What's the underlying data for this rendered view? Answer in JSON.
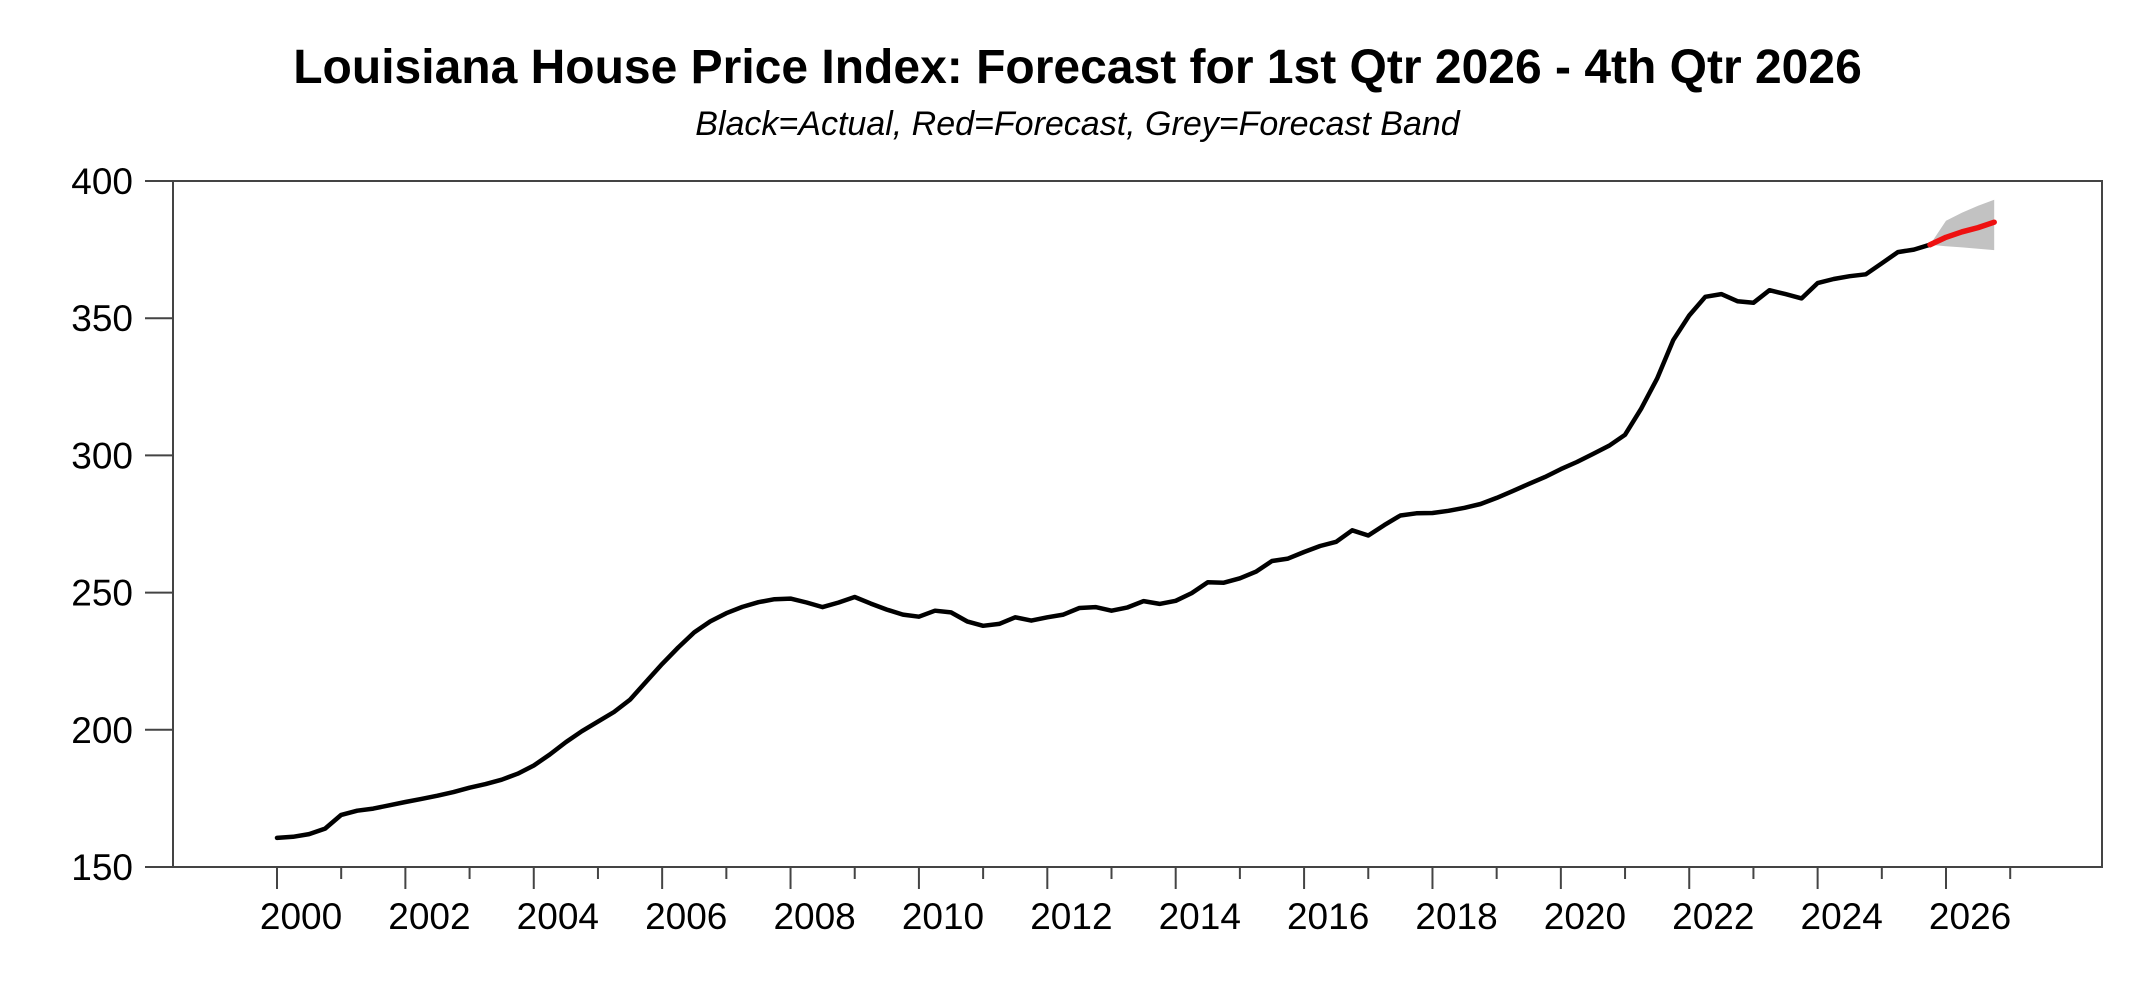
{
  "header": {
    "title": "Louisiana House Price Index: Forecast for 1st Qtr 2026 - 4th Qtr 2026",
    "subtitle": "Black=Actual, Red=Forecast, Grey=Forecast Band"
  },
  "colors": {
    "background": "#ffffff",
    "text": "#000000",
    "axis": "#444444",
    "actual_line": "#000000",
    "forecast_line": "#ee1111",
    "forecast_band": "#c2c2c2"
  },
  "chart_data": {
    "type": "line",
    "title": "Louisiana House Price Index: Forecast for 1st Qtr 2026 - 4th Qtr 2026",
    "subtitle": "Black=Actual, Red=Forecast, Grey=Forecast Band",
    "xlabel": "",
    "ylabel": "",
    "grid": false,
    "legend_position": "none",
    "xlim": [
      1998.38,
      2028.43
    ],
    "ylim": [
      150,
      400
    ],
    "yticks": [
      150,
      200,
      250,
      300,
      350,
      400
    ],
    "xticks_major_years": [
      2000,
      2002,
      2004,
      2006,
      2008,
      2010,
      2012,
      2014,
      2016,
      2018,
      2020,
      2022,
      2024,
      2026
    ],
    "xticks_minor_years": [
      2001,
      2003,
      2005,
      2007,
      2009,
      2011,
      2013,
      2015,
      2017,
      2019,
      2021,
      2023,
      2025,
      2027
    ],
    "xtick_labels": [
      "2000",
      "2002",
      "2004",
      "2006",
      "2008",
      "2010",
      "2012",
      "2014",
      "2016",
      "2018",
      "2020",
      "2022",
      "2024",
      "2026"
    ],
    "xtick_label_offset_years": 0.375,
    "frequency": "quarterly",
    "series": [
      {
        "name": "Actual",
        "role": "actual",
        "color": "#000000",
        "x_start": 2000.0,
        "x_step": 0.25,
        "values": [
          160.6,
          161.0,
          162.0,
          164.0,
          169.0,
          170.5,
          171.3,
          172.5,
          173.7,
          174.8,
          176.0,
          177.3,
          178.9,
          180.2,
          181.8,
          184.0,
          187.0,
          191.0,
          195.5,
          199.5,
          203.0,
          206.5,
          211.0,
          217.5,
          224.0,
          230.0,
          235.5,
          239.5,
          242.5,
          244.8,
          246.5,
          247.6,
          247.8,
          246.4,
          244.7,
          246.4,
          248.4,
          246.0,
          243.8,
          242.0,
          241.2,
          243.4,
          242.8,
          239.5,
          237.9,
          238.6,
          241.0,
          239.8,
          241.0,
          242.0,
          244.4,
          244.7,
          243.4,
          244.6,
          246.9,
          245.9,
          247.0,
          249.8,
          253.8,
          253.6,
          255.2,
          257.6,
          261.5,
          262.4,
          264.8,
          267.0,
          268.5,
          272.7,
          270.8,
          274.6,
          278.1,
          278.9,
          279.0,
          279.8,
          280.9,
          282.3,
          284.5,
          287.0,
          289.6,
          292.1,
          295.0,
          297.6,
          300.5,
          303.5,
          307.5,
          317.0,
          328.0,
          342.0,
          351.0,
          357.8,
          358.8,
          356.2,
          355.6,
          360.2,
          358.8,
          357.2,
          362.8,
          364.3,
          365.3,
          366.0,
          370.0,
          374.1,
          375.0,
          376.8
        ]
      },
      {
        "name": "Forecast",
        "role": "forecast",
        "color": "#ee1111",
        "x_start": 2025.75,
        "x_step": 0.25,
        "values": [
          376.8,
          379.5,
          381.5,
          383.0,
          385.0
        ]
      },
      {
        "name": "Forecast Band",
        "role": "band",
        "color": "#c2c2c2",
        "x_start": 2025.75,
        "x_step": 0.25,
        "upper": [
          376.8,
          385.5,
          388.5,
          391.0,
          393.2
        ],
        "lower": [
          376.8,
          376.2,
          375.8,
          375.3,
          374.8
        ]
      }
    ]
  }
}
